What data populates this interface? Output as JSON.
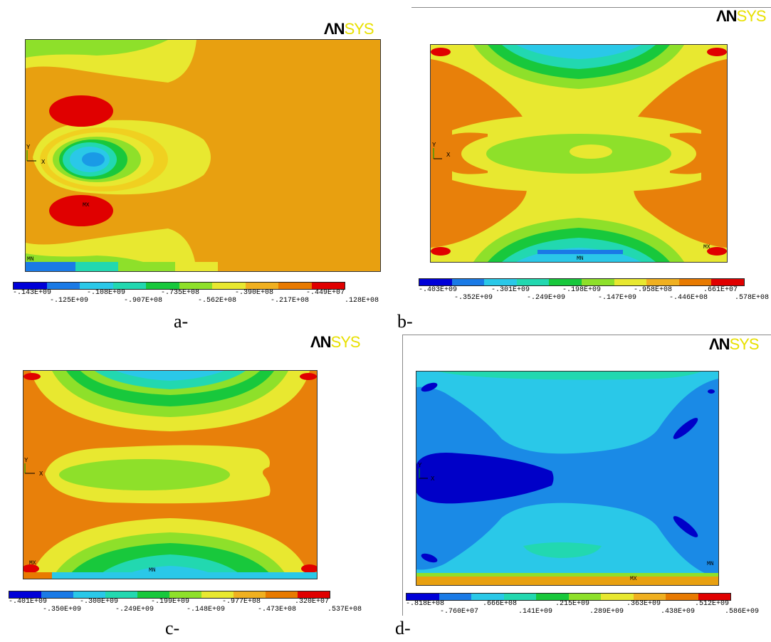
{
  "panels": {
    "a": {
      "logo_an": "ΛN",
      "logo_sys": "SYS",
      "caption": "a-",
      "mx": "MX",
      "mn": "MN",
      "axis_x": "X",
      "axis_y": "Y",
      "legend_top": [
        "-.143E+09",
        "-.108E+09",
        "-.735E+08",
        "-.390E+08",
        "-.449E+07"
      ],
      "legend_bottom": [
        "-.125E+09",
        "-.907E+08",
        "-.562E+08",
        "-.217E+08",
        ".128E+08"
      ]
    },
    "b": {
      "logo_an": "ΛN",
      "logo_sys": "SYS",
      "caption": "b-",
      "mx": "MX",
      "mn": "MN",
      "axis_x": "X",
      "axis_y": "Y",
      "legend_top": [
        "-.403E+09",
        "-.301E+09",
        "-.198E+09",
        "-.958E+08",
        ".661E+07"
      ],
      "legend_bottom": [
        "-.352E+09",
        "-.249E+09",
        "-.147E+09",
        "-.446E+08",
        ".578E+08"
      ]
    },
    "c": {
      "logo_an": "ΛN",
      "logo_sys": "SYS",
      "caption": "c-",
      "mx": "MX",
      "mn": "MN",
      "axis_x": "X",
      "axis_y": "Y",
      "legend_top": [
        "-.401E+09",
        "-.300E+09",
        "-.199E+09",
        "-.977E+08",
        ".320E+07"
      ],
      "legend_bottom": [
        "-.350E+09",
        "-.249E+09",
        "-.148E+09",
        "-.473E+08",
        ".537E+08"
      ]
    },
    "d": {
      "logo_an": "ΛN",
      "logo_sys": "SYS",
      "caption": "d-",
      "mx": "MX",
      "mn": "MN",
      "axis_x": "X",
      "axis_y": "Y",
      "legend_top": [
        "-.818E+08",
        ".666E+08",
        ".215E+09",
        ".363E+09",
        ".512E+09"
      ],
      "legend_bottom": [
        "-.760E+07",
        ".141E+09",
        ".289E+09",
        ".438E+09",
        ".586E+09"
      ]
    }
  },
  "colorbar_colors": [
    "#0000d8",
    "#1a7ae6",
    "#2ac8e8",
    "#22d8b0",
    "#18c83c",
    "#8ee02a",
    "#e8e830",
    "#f0b020",
    "#e87a00",
    "#e00000"
  ]
}
